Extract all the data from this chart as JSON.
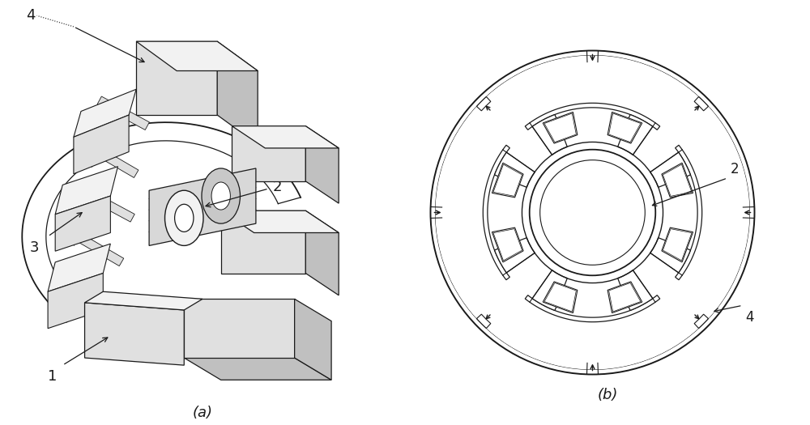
{
  "title_a": "(a)",
  "title_b": "(b)",
  "label_1": "1",
  "label_2": "2",
  "label_3": "3",
  "label_4": "4",
  "bg_color": "#ffffff",
  "line_color": "#1a1a1a",
  "fc_white": "#ffffff",
  "fc_light": "#f2f2f2",
  "fc_mid": "#e0e0e0",
  "fc_dark": "#c0c0c0",
  "font_size_label": 12,
  "font_size_caption": 13,
  "r_outer_b": 1.08,
  "r_inner_b": 0.73,
  "r_rotor_b": 0.42,
  "r_rotor_inner_b": 0.35
}
